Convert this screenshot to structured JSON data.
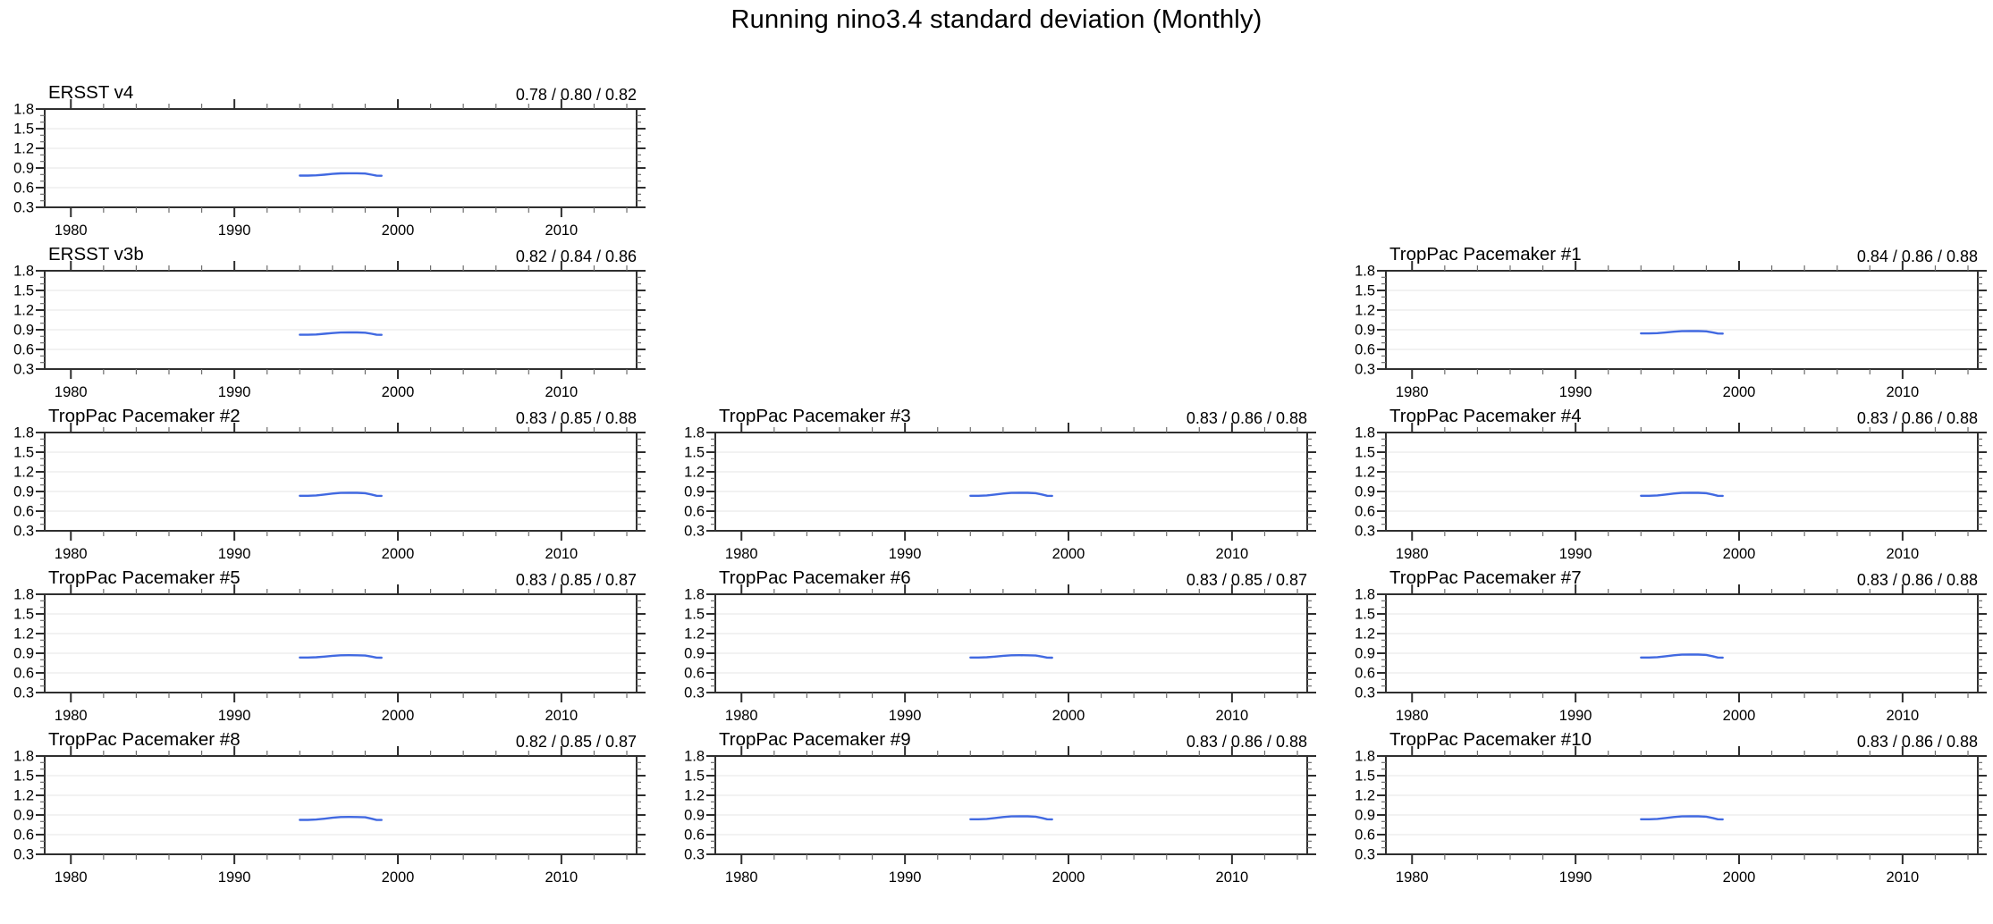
{
  "title": "Running nino3.4 standard deviation (Monthly)",
  "colors": {
    "line": "#4169e1",
    "frame": "#2f2f2f",
    "minor_tick": "#6e6e6e",
    "grid": "#ebebeb",
    "text": "#000000",
    "background": "#ffffff"
  },
  "chart_data": {
    "type": "line",
    "title": "Running nino3.4 standard deviation (Monthly)",
    "xlabel": "",
    "ylabel": "",
    "xlim": [
      1978.4,
      2014.6
    ],
    "ylim": [
      0.3,
      1.8
    ],
    "xticks": [
      1980,
      1990,
      2000,
      2010
    ],
    "yticks": [
      0.3,
      0.6,
      0.9,
      1.2,
      1.5,
      1.8
    ],
    "x_minor_step": 2,
    "y_minor_step": 0.1,
    "grid_y": [
      0.6,
      0.9,
      1.2,
      1.5
    ],
    "grid_on": true,
    "legend_position": "none",
    "x": [
      1994,
      1994.5,
      1995,
      1995.5,
      1996,
      1996.5,
      1997,
      1997.5,
      1998,
      1998.4,
      1998.7,
      1999
    ],
    "panels": [
      {
        "title": "ERSST v4",
        "stats_label": "0.78 / 0.80 / 0.82",
        "min": 0.78,
        "mean": 0.8,
        "max": 0.82,
        "row": 0,
        "col": 0,
        "y": [
          0.784,
          0.784,
          0.788,
          0.798,
          0.81,
          0.818,
          0.82,
          0.819,
          0.815,
          0.798,
          0.783,
          0.782
        ]
      },
      {
        "title": "ERSST v3b",
        "stats_label": "0.82 / 0.84 / 0.86",
        "min": 0.82,
        "mean": 0.84,
        "max": 0.86,
        "row": 1,
        "col": 0,
        "y": [
          0.824,
          0.824,
          0.828,
          0.838,
          0.85,
          0.858,
          0.86,
          0.859,
          0.855,
          0.838,
          0.823,
          0.822
        ]
      },
      {
        "title": "TropPac Pacemaker #1",
        "stats_label": "0.84 / 0.86 / 0.88",
        "min": 0.84,
        "mean": 0.86,
        "max": 0.88,
        "row": 1,
        "col": 2,
        "y": [
          0.844,
          0.844,
          0.848,
          0.858,
          0.87,
          0.878,
          0.88,
          0.879,
          0.875,
          0.858,
          0.843,
          0.842
        ]
      },
      {
        "title": "TropPac Pacemaker #2",
        "stats_label": "0.83 / 0.85 / 0.88",
        "min": 0.83,
        "mean": 0.85,
        "max": 0.88,
        "row": 2,
        "col": 0,
        "y": [
          0.835,
          0.835,
          0.84,
          0.853,
          0.868,
          0.878,
          0.88,
          0.879,
          0.874,
          0.853,
          0.834,
          0.833
        ]
      },
      {
        "title": "TropPac Pacemaker #3",
        "stats_label": "0.83 / 0.86 / 0.88",
        "min": 0.83,
        "mean": 0.86,
        "max": 0.88,
        "row": 2,
        "col": 1,
        "y": [
          0.835,
          0.835,
          0.84,
          0.853,
          0.868,
          0.878,
          0.88,
          0.879,
          0.874,
          0.853,
          0.834,
          0.833
        ]
      },
      {
        "title": "TropPac Pacemaker #4",
        "stats_label": "0.83 / 0.86 / 0.88",
        "min": 0.83,
        "mean": 0.86,
        "max": 0.88,
        "row": 2,
        "col": 2,
        "y": [
          0.835,
          0.835,
          0.84,
          0.853,
          0.868,
          0.878,
          0.88,
          0.879,
          0.874,
          0.853,
          0.834,
          0.833
        ]
      },
      {
        "title": "TropPac Pacemaker #5",
        "stats_label": "0.83 / 0.85 / 0.87",
        "min": 0.83,
        "mean": 0.85,
        "max": 0.87,
        "row": 3,
        "col": 0,
        "y": [
          0.834,
          0.834,
          0.838,
          0.848,
          0.86,
          0.868,
          0.87,
          0.869,
          0.865,
          0.848,
          0.833,
          0.832
        ]
      },
      {
        "title": "TropPac Pacemaker #6",
        "stats_label": "0.83 / 0.85 / 0.87",
        "min": 0.83,
        "mean": 0.85,
        "max": 0.87,
        "row": 3,
        "col": 1,
        "y": [
          0.834,
          0.834,
          0.838,
          0.848,
          0.86,
          0.868,
          0.87,
          0.869,
          0.865,
          0.848,
          0.833,
          0.832
        ]
      },
      {
        "title": "TropPac Pacemaker #7",
        "stats_label": "0.83 / 0.86 / 0.88",
        "min": 0.83,
        "mean": 0.86,
        "max": 0.88,
        "row": 3,
        "col": 2,
        "y": [
          0.835,
          0.835,
          0.84,
          0.853,
          0.868,
          0.878,
          0.88,
          0.879,
          0.874,
          0.853,
          0.834,
          0.833
        ]
      },
      {
        "title": "TropPac Pacemaker #8",
        "stats_label": "0.82 / 0.85 / 0.87",
        "min": 0.82,
        "mean": 0.85,
        "max": 0.87,
        "row": 4,
        "col": 0,
        "y": [
          0.825,
          0.825,
          0.83,
          0.843,
          0.858,
          0.868,
          0.87,
          0.869,
          0.864,
          0.843,
          0.824,
          0.823
        ]
      },
      {
        "title": "TropPac Pacemaker #9",
        "stats_label": "0.83 / 0.86 / 0.88",
        "min": 0.83,
        "mean": 0.86,
        "max": 0.88,
        "row": 4,
        "col": 1,
        "y": [
          0.835,
          0.835,
          0.84,
          0.853,
          0.868,
          0.878,
          0.88,
          0.879,
          0.874,
          0.853,
          0.834,
          0.833
        ]
      },
      {
        "title": "TropPac Pacemaker #10",
        "stats_label": "0.83 / 0.86 / 0.88",
        "min": 0.83,
        "mean": 0.86,
        "max": 0.88,
        "row": 4,
        "col": 2,
        "y": [
          0.835,
          0.835,
          0.84,
          0.853,
          0.868,
          0.878,
          0.88,
          0.879,
          0.874,
          0.853,
          0.834,
          0.833
        ]
      }
    ]
  }
}
